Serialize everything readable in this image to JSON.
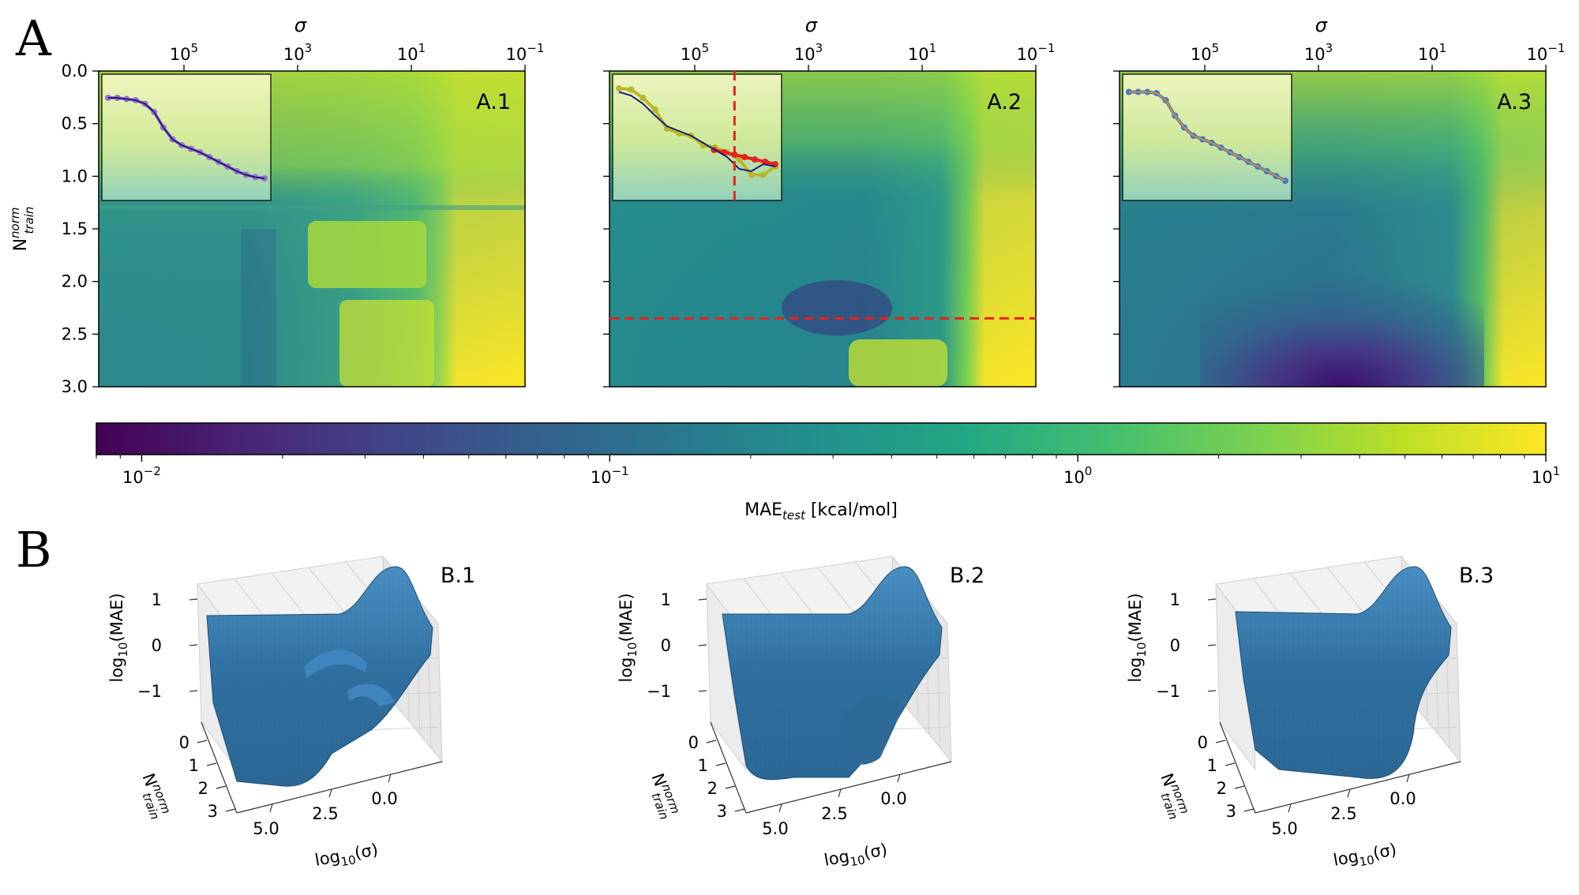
{
  "figure": {
    "panel_a_label": "A",
    "panel_b_label": "B"
  },
  "chart_data": [
    {
      "type": "heatmap",
      "id": "A.1",
      "title": "A.1",
      "x_axis_label": "σ",
      "x_axis_scale": "log",
      "x_ticks": [
        {
          "value": 100000,
          "base": "10",
          "exp": "5"
        },
        {
          "value": 1000,
          "base": "10",
          "exp": "3"
        },
        {
          "value": 10,
          "base": "10",
          "exp": "1"
        },
        {
          "value": 0.1,
          "base": "10",
          "exp": "−1"
        }
      ],
      "y_axis_label": "N",
      "y_label_sup": "norm",
      "y_label_sub": "train",
      "y_ticks": [
        "0.0",
        "0.5",
        "1.0",
        "1.5",
        "2.0",
        "2.5",
        "3.0"
      ],
      "ylim": [
        0,
        3
      ],
      "inset_curves": [
        {
          "name": "learning curve",
          "color": "#9b6fd0",
          "y": [
            0.2,
            0.2,
            0.21,
            0.22,
            0.25,
            0.32,
            0.45,
            0.55,
            0.6,
            0.63,
            0.66,
            0.7,
            0.74,
            0.78,
            0.82,
            0.85,
            0.87,
            0.88
          ]
        },
        {
          "name": "fit",
          "color": "#1f1f7a",
          "y": [
            0.2,
            0.2,
            0.21,
            0.22,
            0.25,
            0.32,
            0.45,
            0.55,
            0.6,
            0.63,
            0.66,
            0.7,
            0.74,
            0.78,
            0.82,
            0.85,
            0.87,
            0.88
          ]
        }
      ]
    },
    {
      "type": "heatmap",
      "id": "A.2",
      "title": "A.2",
      "x_axis_label": "σ",
      "x_axis_scale": "log",
      "x_ticks": [
        {
          "value": 100000,
          "base": "10",
          "exp": "5"
        },
        {
          "value": 1000,
          "base": "10",
          "exp": "3"
        },
        {
          "value": 10,
          "base": "10",
          "exp": "1"
        },
        {
          "value": 0.1,
          "base": "10",
          "exp": "−1"
        }
      ],
      "ylim": [
        0,
        3
      ],
      "y_ticks": [
        "0.0",
        "0.5",
        "1.0",
        "1.5",
        "2.0",
        "2.5",
        "3.0"
      ],
      "reference_line_y": 2.35,
      "reference_line_sigma": 20000,
      "inset_curves": [
        {
          "name": "learning curve",
          "color": "#b8b82a",
          "y": [
            0.12,
            0.13,
            0.2,
            0.3,
            0.46,
            0.5,
            0.52,
            0.6,
            0.62,
            0.66,
            0.72,
            0.85,
            0.85,
            0.78
          ]
        },
        {
          "name": "continuation",
          "color": "#e8221e",
          "y": [
            0.64,
            0.66,
            0.68,
            0.7,
            0.72,
            0.74,
            0.76
          ]
        },
        {
          "name": "fit",
          "color": "#1f1f7a",
          "y": [
            0.15,
            0.18,
            0.25,
            0.35,
            0.44,
            0.48,
            0.52,
            0.58,
            0.64,
            0.7,
            0.8,
            0.82,
            0.76,
            0.78
          ]
        }
      ]
    },
    {
      "type": "heatmap",
      "id": "A.3",
      "title": "A.3",
      "x_axis_label": "σ",
      "x_axis_scale": "log",
      "x_ticks": [
        {
          "value": 100000,
          "base": "10",
          "exp": "5"
        },
        {
          "value": 1000,
          "base": "10",
          "exp": "3"
        },
        {
          "value": 10,
          "base": "10",
          "exp": "1"
        },
        {
          "value": 0.1,
          "base": "10",
          "exp": "−1"
        }
      ],
      "ylim": [
        0,
        3
      ],
      "y_ticks": [
        "0.0",
        "0.5",
        "1.0",
        "1.5",
        "2.0",
        "2.5",
        "3.0"
      ],
      "inset_curves": [
        {
          "name": "learning curve",
          "color": "#3a7bd5",
          "y": [
            0.15,
            0.15,
            0.15,
            0.16,
            0.22,
            0.35,
            0.45,
            0.52,
            0.55,
            0.58,
            0.62,
            0.66,
            0.7,
            0.74,
            0.78,
            0.82,
            0.86,
            0.9
          ]
        },
        {
          "name": "fit",
          "color": "#d98a2b",
          "y": [
            0.15,
            0.15,
            0.15,
            0.16,
            0.22,
            0.35,
            0.45,
            0.52,
            0.55,
            0.58,
            0.62,
            0.66,
            0.7,
            0.74,
            0.78,
            0.82,
            0.86,
            0.9
          ]
        }
      ]
    },
    {
      "type": "colorbar",
      "id": "colorbar",
      "scale": "log",
      "range": [
        0.008,
        10
      ],
      "colormap": "viridis",
      "label_main": "MAE",
      "label_sub": "test",
      "label_rest": " [kcal/mol]",
      "ticks": [
        {
          "value": 0.01,
          "base": "10",
          "exp": "−2"
        },
        {
          "value": 0.1,
          "base": "10",
          "exp": "−1"
        },
        {
          "value": 1,
          "base": "10",
          "exp": "0"
        },
        {
          "value": 10,
          "base": "10",
          "exp": "1"
        }
      ]
    },
    {
      "type": "surface3d",
      "id": "B.1",
      "title": "B.1",
      "z_axis_label": "log",
      "z_label_sub": "10",
      "z_label_rest": "(MAE)",
      "z_ticks": [
        "1",
        "0",
        "−1"
      ],
      "y_axis_label": "N",
      "y_label_sup": "norm",
      "y_label_sub": "train",
      "y_ticks": [
        "0",
        "1",
        "2",
        "3"
      ],
      "x_axis_label": "log",
      "x_label_sub": "10",
      "x_label_rest": "(σ)",
      "x_ticks": [
        "5.0",
        "2.5",
        "0.0"
      ]
    },
    {
      "type": "surface3d",
      "id": "B.2",
      "title": "B.2",
      "z_axis_label": "log",
      "z_label_sub": "10",
      "z_label_rest": "(MAE)",
      "z_ticks": [
        "1",
        "0",
        "−1"
      ],
      "y_axis_label": "N",
      "y_label_sup": "norm",
      "y_label_sub": "train",
      "y_ticks": [
        "0",
        "1",
        "2",
        "3"
      ],
      "x_axis_label": "log",
      "x_label_sub": "10",
      "x_label_rest": "(σ)",
      "x_ticks": [
        "5.0",
        "2.5",
        "0.0"
      ]
    },
    {
      "type": "surface3d",
      "id": "B.3",
      "title": "B.3",
      "z_axis_label": "log",
      "z_label_sub": "10",
      "z_label_rest": "(MAE)",
      "z_ticks": [
        "1",
        "0",
        "−1"
      ],
      "y_axis_label": "N",
      "y_label_sup": "norm",
      "y_label_sub": "train",
      "y_ticks": [
        "0",
        "1",
        "2",
        "3"
      ],
      "x_axis_label": "log",
      "x_label_sub": "10",
      "x_label_rest": "(σ)",
      "x_ticks": [
        "5.0",
        "2.5",
        "0.0"
      ]
    }
  ]
}
